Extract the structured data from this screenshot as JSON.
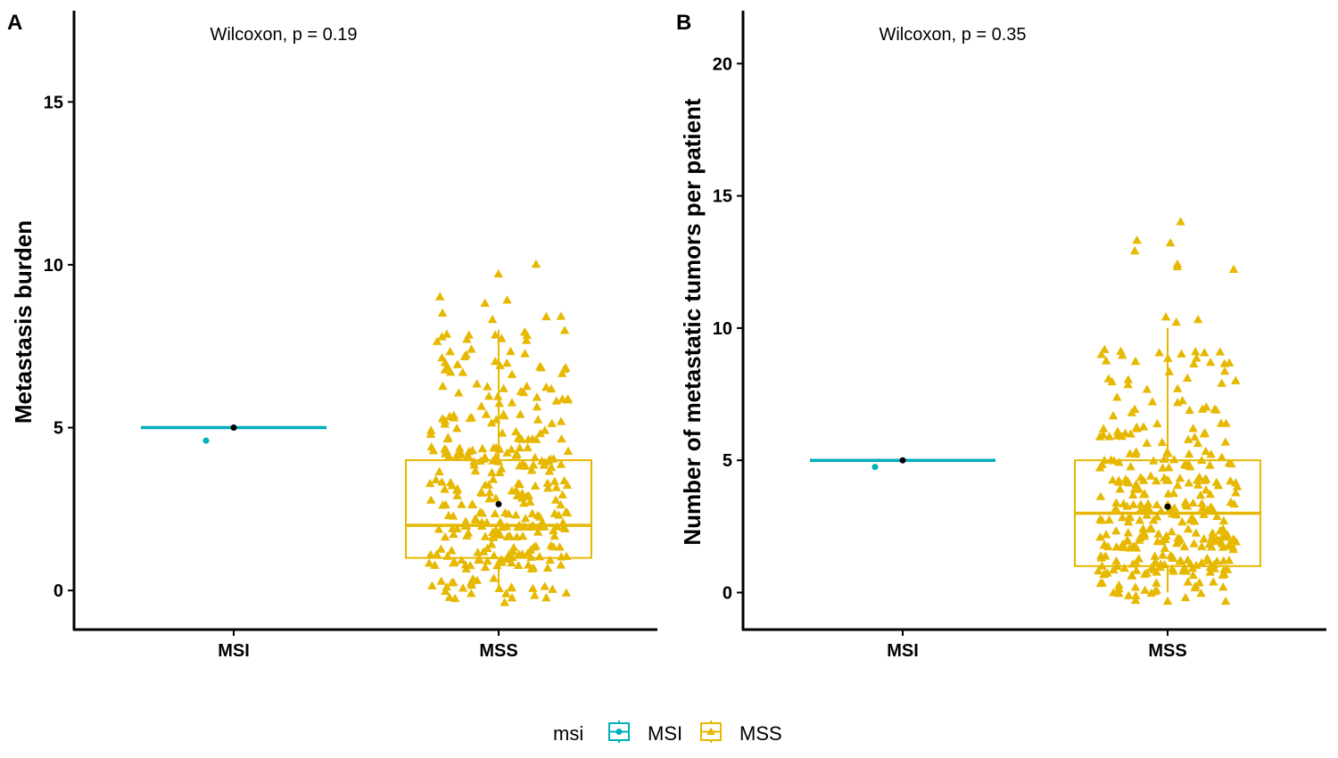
{
  "colors": {
    "MSI": "#00AFBB",
    "MSS": "#E7B800",
    "mean": "#000000",
    "axis": "#000000"
  },
  "legend": {
    "title": "msi",
    "items": [
      {
        "label": "MSI",
        "color_key": "MSI",
        "shape": "circle"
      },
      {
        "label": "MSS",
        "color_key": "MSS",
        "shape": "triangle"
      }
    ]
  },
  "chart_data": [
    {
      "panel": "A",
      "type": "box",
      "annotation": "Wilcoxon, p = 0.19",
      "ylabel": "Metastasis burden",
      "xlabel": "",
      "categories": [
        "MSI",
        "MSS"
      ],
      "ylim": [
        -1.2,
        17.8
      ],
      "yticks": [
        0,
        5,
        10,
        15
      ],
      "boxes": [
        {
          "group": "MSI",
          "min": 5,
          "q1": 5,
          "median": 5,
          "q3": 5,
          "max": 5,
          "mean": 5,
          "points": [
            4.6
          ]
        },
        {
          "group": "MSS",
          "min": 0,
          "q1": 1,
          "median": 2,
          "q3": 4,
          "max": 8,
          "mean": 2.65,
          "n_points": 330,
          "max_point": 10.0,
          "outliers": [
            9.7,
            10.0,
            9.0,
            8.9,
            8.8,
            8.5,
            8.4,
            8.3
          ]
        }
      ]
    },
    {
      "panel": "B",
      "type": "box",
      "annotation": "Wilcoxon, p = 0.35",
      "ylabel": "Number of metastatic tumors per patient",
      "xlabel": "",
      "categories": [
        "MSI",
        "MSS"
      ],
      "ylim": [
        -1.4,
        22
      ],
      "yticks": [
        0,
        5,
        10,
        15,
        20
      ],
      "boxes": [
        {
          "group": "MSI",
          "min": 5,
          "q1": 5,
          "median": 5,
          "q3": 5,
          "max": 5,
          "mean": 5,
          "points": [
            4.75
          ]
        },
        {
          "group": "MSS",
          "min": 0,
          "q1": 1,
          "median": 3,
          "q3": 5,
          "max": 10,
          "mean": 3.25,
          "n_points": 330,
          "max_point": 14.0,
          "outliers": [
            14.0,
            13.3,
            13.2,
            12.9,
            12.4,
            12.3,
            12.2,
            10.4,
            10.3,
            10.2
          ]
        }
      ]
    }
  ]
}
